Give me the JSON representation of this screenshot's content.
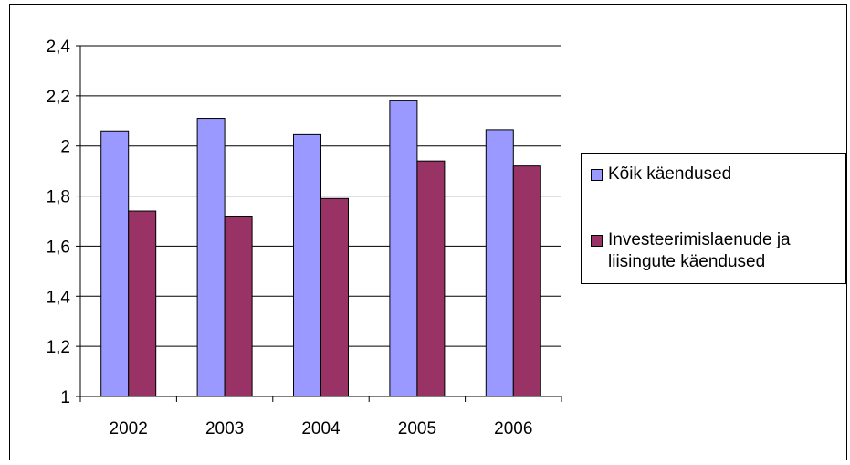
{
  "chart_data": {
    "type": "bar",
    "title": "",
    "xlabel": "",
    "ylabel": "",
    "categories": [
      "2002",
      "2003",
      "2004",
      "2005",
      "2006"
    ],
    "ylim": [
      1,
      2.4
    ],
    "yticks": [
      "1",
      "1,2",
      "1,4",
      "1,6",
      "1,8",
      "2",
      "2,2",
      "2,4"
    ],
    "ytick_values": [
      1,
      1.2,
      1.4,
      1.6,
      1.8,
      2,
      2.2,
      2.4
    ],
    "grid": true,
    "legend_position": "right",
    "series": [
      {
        "name": "Kõik käendused",
        "color": "#9999ff",
        "values": [
          2.06,
          2.11,
          2.045,
          2.18,
          2.065
        ]
      },
      {
        "name": "Investeerimislaenude ja liisingute käendused",
        "color": "#993366",
        "values": [
          1.74,
          1.72,
          1.79,
          1.94,
          1.92
        ]
      }
    ]
  }
}
